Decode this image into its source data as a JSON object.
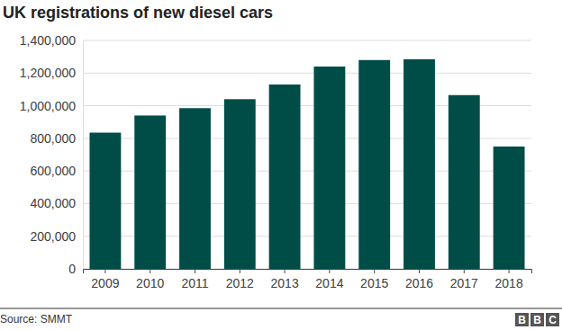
{
  "chart_data": {
    "type": "bar",
    "title": "UK registrations of new diesel cars",
    "categories": [
      "2009",
      "2010",
      "2011",
      "2012",
      "2013",
      "2014",
      "2015",
      "2016",
      "2017",
      "2018"
    ],
    "values": [
      835000,
      940000,
      985000,
      1040000,
      1130000,
      1240000,
      1280000,
      1285000,
      1065000,
      750000
    ],
    "color": "#004d48",
    "ylim": [
      0,
      1400000
    ],
    "yticks": [
      0,
      {
        "value": 200000,
        "label": "200,000"
      },
      {
        "value": 400000,
        "label": "400,000"
      },
      {
        "value": 600000,
        "label": "600,000"
      },
      {
        "value": 800000,
        "label": "800,000"
      },
      {
        "value": 1000000,
        "label": "1,000,000"
      },
      {
        "value": 1200000,
        "label": "1,200,000"
      },
      {
        "value": 1400000,
        "label": "1,400,000"
      }
    ],
    "grid": true,
    "source": "Source: SMMT",
    "logo": [
      "B",
      "B",
      "C"
    ]
  }
}
